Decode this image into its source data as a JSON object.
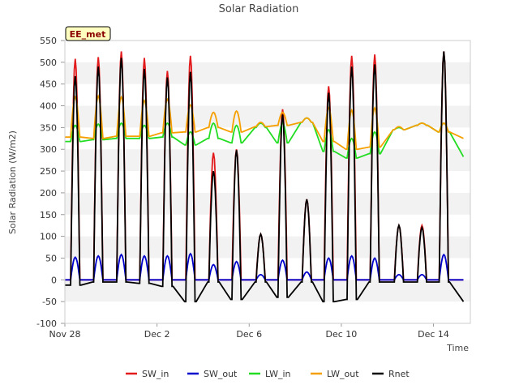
{
  "chart_data": {
    "type": "line",
    "title": "Solar Radiation",
    "xlabel": "Time",
    "ylabel": "Solar Radiation (W/m2)",
    "badge": "EE_met",
    "xlim": [
      0,
      17.6
    ],
    "ylim": [
      -100,
      550
    ],
    "x_ticks": [
      {
        "value": 0,
        "label": "Nov 28"
      },
      {
        "value": 4,
        "label": "Dec 2"
      },
      {
        "value": 8,
        "label": "Dec 6"
      },
      {
        "value": 12,
        "label": "Dec 10"
      },
      {
        "value": 16,
        "label": "Dec 14"
      }
    ],
    "y_ticks": [
      -100,
      -50,
      0,
      50,
      100,
      150,
      200,
      250,
      300,
      350,
      400,
      450,
      500,
      550
    ],
    "grid": "horizontal alternating bands",
    "legend_position": "bottom",
    "daily_peaks": [
      {
        "day": 0.45,
        "sw_in": 508,
        "sw_out": 52,
        "lw_in_base": 318,
        "lw_in_peak": 355,
        "lw_out_base": 328,
        "lw_out_peak": 420,
        "rnet_peak": 468,
        "rnet_night": -12
      },
      {
        "day": 1.45,
        "sw_in": 512,
        "sw_out": 55,
        "lw_in_base": 322,
        "lw_in_peak": 358,
        "lw_out_base": 325,
        "lw_out_peak": 422,
        "rnet_peak": 490,
        "rnet_night": -5
      },
      {
        "day": 2.45,
        "sw_in": 525,
        "sw_out": 58,
        "lw_in_base": 325,
        "lw_in_peak": 360,
        "lw_out_base": 330,
        "lw_out_peak": 420,
        "rnet_peak": 510,
        "rnet_night": -5
      },
      {
        "day": 3.45,
        "sw_in": 510,
        "sw_out": 55,
        "lw_in_base": 325,
        "lw_in_peak": 355,
        "lw_out_base": 330,
        "lw_out_peak": 412,
        "rnet_peak": 485,
        "rnet_night": -8
      },
      {
        "day": 4.45,
        "sw_in": 480,
        "sw_out": 55,
        "lw_in_base": 328,
        "lw_in_peak": 360,
        "lw_out_base": 338,
        "lw_out_peak": 415,
        "rnet_peak": 465,
        "rnet_night": -15
      },
      {
        "day": 5.45,
        "sw_in": 515,
        "sw_out": 60,
        "lw_in_base": 310,
        "lw_in_peak": 340,
        "lw_out_base": 340,
        "lw_out_peak": 402,
        "rnet_peak": 478,
        "rnet_night": -50
      },
      {
        "day": 6.45,
        "sw_in": 292,
        "sw_out": 35,
        "lw_in_base": 325,
        "lw_in_peak": 360,
        "lw_out_base": 350,
        "lw_out_peak": 385,
        "rnet_peak": 250,
        "rnet_night": -5
      },
      {
        "day": 7.45,
        "sw_in": 300,
        "sw_out": 42,
        "lw_in_base": 315,
        "lw_in_peak": 355,
        "lw_out_base": 340,
        "lw_out_peak": 388,
        "rnet_peak": 298,
        "rnet_night": -45
      },
      {
        "day": 8.5,
        "sw_in": 105,
        "sw_out": 12,
        "lw_in_base": 350,
        "lw_in_peak": 360,
        "lw_out_base": 352,
        "lw_out_peak": 362,
        "rnet_peak": 105,
        "rnet_night": -5
      },
      {
        "day": 9.45,
        "sw_in": 392,
        "sw_out": 45,
        "lw_in_base": 315,
        "lw_in_peak": 360,
        "lw_out_base": 355,
        "lw_out_peak": 385,
        "rnet_peak": 380,
        "rnet_night": -40
      },
      {
        "day": 10.5,
        "sw_in": 185,
        "sw_out": 18,
        "lw_in_base": 362,
        "lw_in_peak": 372,
        "lw_out_base": 362,
        "lw_out_peak": 372,
        "rnet_peak": 185,
        "rnet_night": -5
      },
      {
        "day": 11.45,
        "sw_in": 445,
        "sw_out": 50,
        "lw_in_base": 295,
        "lw_in_peak": 345,
        "lw_out_base": 318,
        "lw_out_peak": 395,
        "rnet_peak": 430,
        "rnet_night": -50
      },
      {
        "day": 12.45,
        "sw_in": 515,
        "sw_out": 55,
        "lw_in_base": 280,
        "lw_in_peak": 325,
        "lw_out_base": 300,
        "lw_out_peak": 390,
        "rnet_peak": 490,
        "rnet_night": -45
      },
      {
        "day": 13.45,
        "sw_in": 518,
        "sw_out": 50,
        "lw_in_base": 290,
        "lw_in_peak": 340,
        "lw_out_base": 305,
        "lw_out_peak": 395,
        "rnet_peak": 495,
        "rnet_night": -5
      },
      {
        "day": 14.5,
        "sw_in": 125,
        "sw_out": 12,
        "lw_in_base": 345,
        "lw_in_peak": 350,
        "lw_out_base": 345,
        "lw_out_peak": 352,
        "rnet_peak": 125,
        "rnet_night": -5
      },
      {
        "day": 15.5,
        "sw_in": 125,
        "sw_out": 12,
        "lw_in_base": 355,
        "lw_in_peak": 360,
        "lw_out_base": 355,
        "lw_out_peak": 360,
        "rnet_peak": 120,
        "rnet_night": -5
      },
      {
        "day": 16.45,
        "sw_in": 525,
        "sw_out": 58,
        "lw_in_base": 340,
        "lw_in_peak": 360,
        "lw_out_base": 340,
        "lw_out_peak": 360,
        "rnet_peak": 525,
        "rnet_night": -5
      }
    ],
    "end": {
      "x": 17.3,
      "sw_in": 0,
      "sw_out": 0,
      "lw_in": 283,
      "lw_out": 325,
      "rnet": -50
    },
    "series": [
      {
        "name": "SW_in",
        "color": "#e31a1c"
      },
      {
        "name": "SW_out",
        "color": "#0000cc"
      },
      {
        "name": "LW_in",
        "color": "#22dd22"
      },
      {
        "name": "LW_out",
        "color": "#f5a000"
      },
      {
        "name": "Rnet",
        "color": "#000000"
      }
    ]
  }
}
